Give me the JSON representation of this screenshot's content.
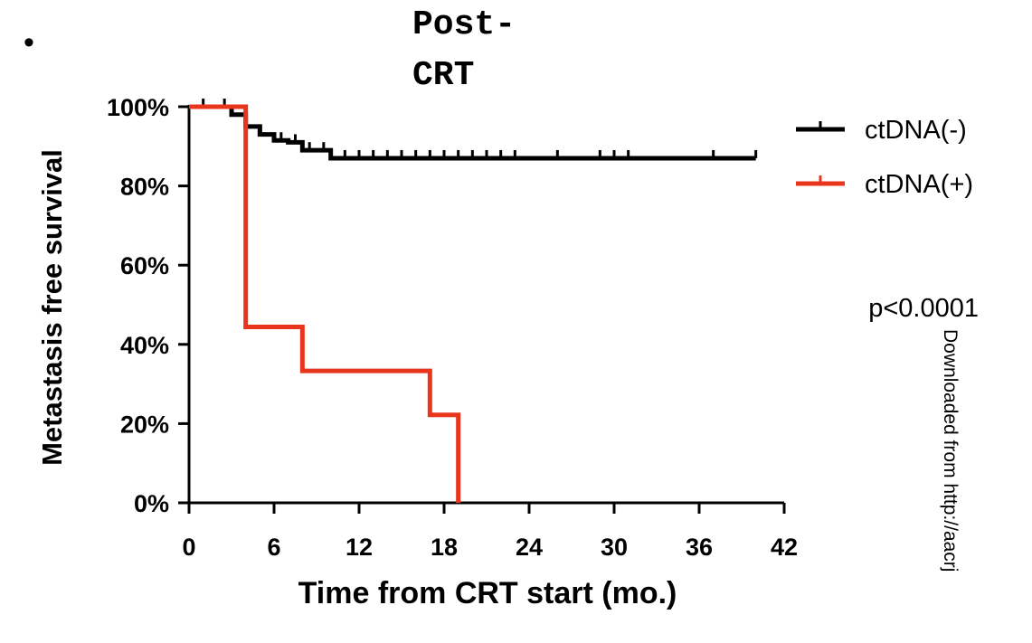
{
  "page": {
    "bullet": "•",
    "title_line1": "Post-",
    "title_line2": "CRT",
    "watermark": "Downloaded from http://aacrj"
  },
  "chart_data": {
    "type": "line",
    "subtype": "kaplan-meier",
    "title": "Post-CRT",
    "xlabel": "Time from CRT start (mo.)",
    "ylabel": "Metastasis free survival",
    "xlim": [
      0,
      42
    ],
    "ylim": [
      0,
      100
    ],
    "xticks": [
      0,
      6,
      12,
      18,
      24,
      30,
      36,
      42
    ],
    "yticks": [
      0,
      20,
      40,
      60,
      80,
      100
    ],
    "yticklabels": [
      "0%",
      "20%",
      "40%",
      "60%",
      "80%",
      "100%"
    ],
    "grid": false,
    "legend_position": "top-right",
    "annotation": "p<0.0001",
    "series": [
      {
        "name": "ctDNA(-)",
        "color": "#000000",
        "steps": [
          [
            0,
            100
          ],
          [
            3,
            98
          ],
          [
            4,
            95
          ],
          [
            5,
            93
          ],
          [
            6,
            91.5
          ],
          [
            7,
            91
          ],
          [
            8,
            89
          ],
          [
            10,
            87
          ],
          [
            40,
            87
          ]
        ],
        "censor_times": [
          1,
          2.5,
          5,
          6.5,
          7.5,
          8.5,
          9.5,
          11,
          12,
          13,
          14,
          15,
          16,
          17,
          18,
          19,
          20,
          21,
          22,
          23,
          26,
          29,
          30,
          31,
          37,
          40
        ]
      },
      {
        "name": "ctDNA(+)",
        "color": "#e8351c",
        "steps": [
          [
            0,
            100
          ],
          [
            4,
            100
          ],
          [
            4,
            44.4
          ],
          [
            8,
            44.4
          ],
          [
            8,
            33.3
          ],
          [
            17,
            33.3
          ],
          [
            17,
            22.2
          ],
          [
            19,
            22.2
          ],
          [
            19,
            0
          ]
        ],
        "censor_times": [
          4
        ]
      }
    ]
  }
}
